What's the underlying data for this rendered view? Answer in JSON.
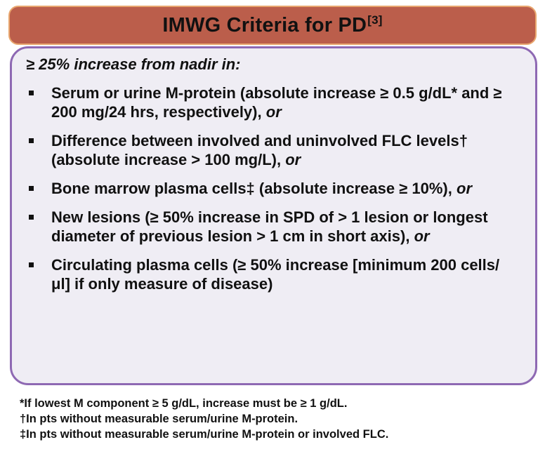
{
  "title": {
    "text": "IMWG Criteria for PD",
    "ref": "[3]"
  },
  "intro": "≥ 25% increase from nadir in:",
  "items": [
    {
      "text": "Serum or urine M-protein (absolute increase ≥ 0.5 g/dL* and ≥ 200 mg/24 hrs, respectively),",
      "suffix": "or"
    },
    {
      "text": "Difference between involved and uninvolved FLC levels† (absolute increase > 100 mg/L),",
      "suffix": "or"
    },
    {
      "text": "Bone marrow plasma cells‡ (absolute increase ≥ 10%),",
      "suffix": "or"
    },
    {
      "text": "New lesions (≥ 50% increase in SPD of > 1 lesion or longest diameter of previous lesion > 1 cm in short axis),",
      "suffix": "or"
    },
    {
      "text": "Circulating plasma cells (≥ 50% increase [minimum 200 cells/μl] if only measure of disease)",
      "suffix": ""
    }
  ],
  "footnotes": [
    "*If lowest M component ≥ 5 g/dL, increase must be ≥ 1 g/dL.",
    "†In pts without measurable serum/urine M-protein.",
    "‡In pts without measurable serum/urine M-protein or involved FLC."
  ],
  "colors": {
    "title_bg": "#bb5e4b",
    "title_border": "#e9a76f",
    "panel_bg": "#efedf4",
    "panel_border": "#8e69b3"
  }
}
